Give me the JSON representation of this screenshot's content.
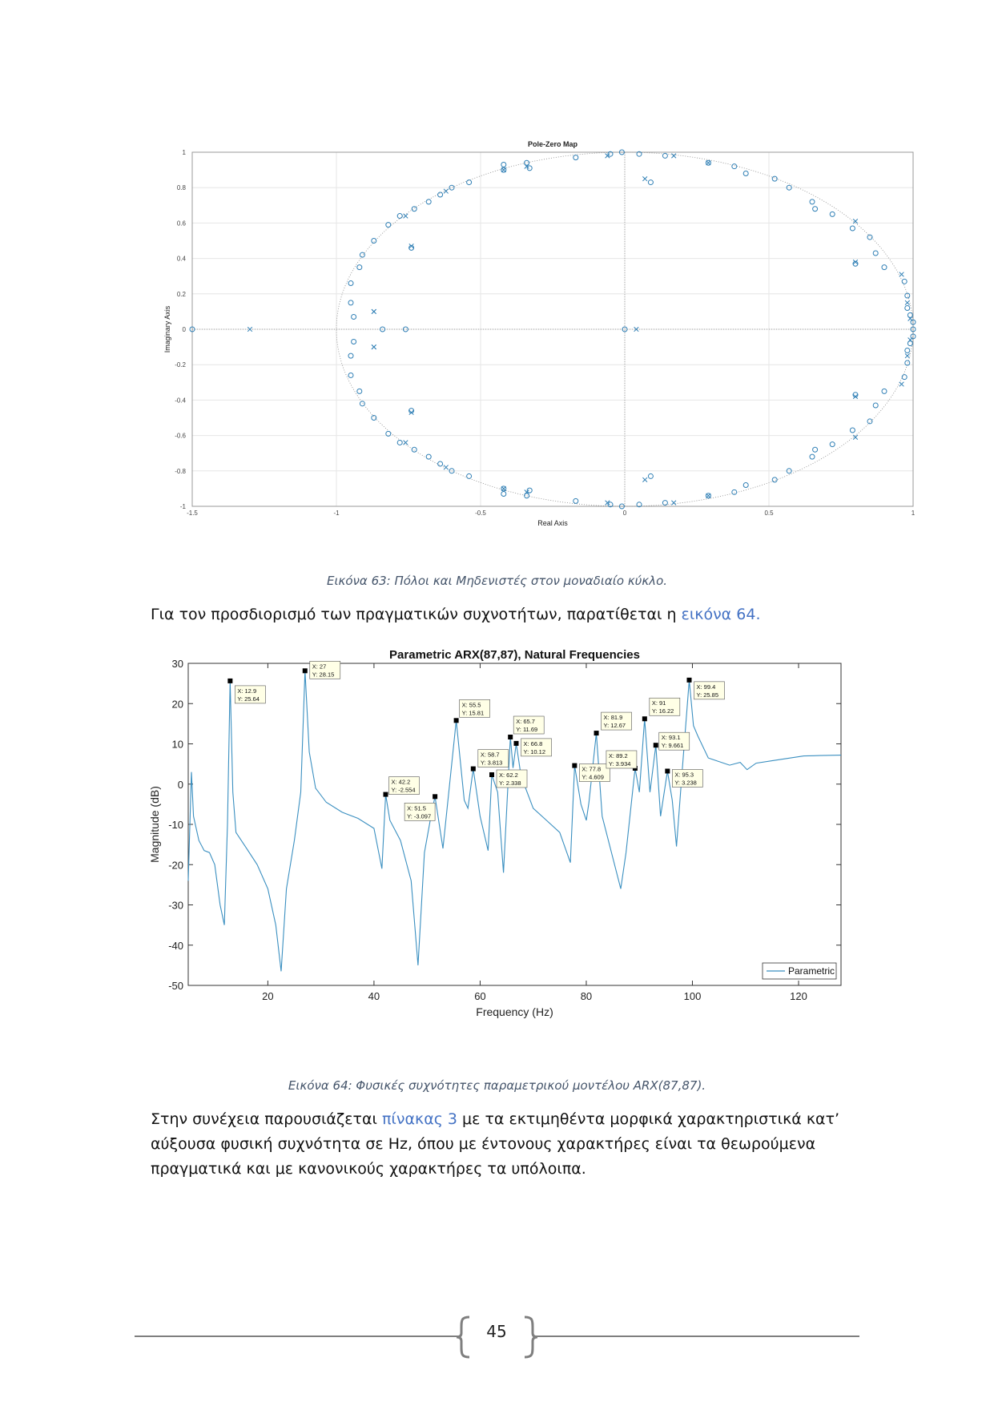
{
  "figure63": {
    "title": "Pole-Zero Map",
    "xlabel": "Real Axis",
    "ylabel": "Imaginary Axis",
    "xticks": [
      "-1.5",
      "-1",
      "-0.5",
      "0",
      "0.5",
      "1"
    ],
    "yticks": [
      "-1",
      "-0.8",
      "-0.6",
      "-0.4",
      "-0.2",
      "0",
      "0.2",
      "0.4",
      "0.6",
      "0.8",
      "1"
    ],
    "caption": "Εικόνα 63: Πόλοι και Μηδενιστές στον μοναδιαίο κύκλο.",
    "color": "#2f7fb5"
  },
  "intro": {
    "text": "Για τον προσδιορισμό των πραγματικών συχνοτήτων, παρατίθεται η ",
    "link": "εικόνα 64",
    "end": "."
  },
  "figure64": {
    "caption": "Εικόνα 64: Φυσικές συχνότητες παραμετρικού μοντέλου ARX(87,87)."
  },
  "chart_data": [
    {
      "type": "scatter",
      "title": "Pole-Zero Map",
      "xlabel": "Real Axis",
      "ylabel": "Imaginary Axis",
      "xlim": [
        -1.5,
        1
      ],
      "ylim": [
        -1,
        1
      ],
      "series": [
        {
          "marker": "o",
          "points": [
            [
              -1.5,
              0
            ],
            [
              -0.84,
              0
            ],
            [
              -0.76,
              0
            ],
            [
              0,
              0
            ],
            [
              -0.95,
              0.26
            ],
            [
              -0.95,
              0.15
            ],
            [
              -0.94,
              0.07
            ],
            [
              -0.92,
              0.35
            ],
            [
              -0.91,
              0.42
            ],
            [
              -0.87,
              0.5
            ],
            [
              -0.82,
              0.59
            ],
            [
              -0.78,
              0.64
            ],
            [
              -0.74,
              0.46
            ],
            [
              -0.73,
              0.68
            ],
            [
              -0.68,
              0.72
            ],
            [
              -0.64,
              0.76
            ],
            [
              -0.6,
              0.8
            ],
            [
              -0.54,
              0.83
            ],
            [
              -0.42,
              0.9
            ],
            [
              -0.42,
              0.93
            ],
            [
              -0.34,
              0.94
            ],
            [
              -0.33,
              0.91
            ],
            [
              -0.17,
              0.97
            ],
            [
              -0.05,
              0.99
            ],
            [
              -0.01,
              1
            ],
            [
              0.05,
              0.99
            ],
            [
              0.09,
              0.83
            ],
            [
              0.14,
              0.98
            ],
            [
              0.29,
              0.94
            ],
            [
              0.38,
              0.92
            ],
            [
              0.42,
              0.88
            ],
            [
              0.52,
              0.85
            ],
            [
              0.57,
              0.8
            ],
            [
              0.65,
              0.72
            ],
            [
              0.66,
              0.68
            ],
            [
              0.72,
              0.65
            ],
            [
              0.79,
              0.57
            ],
            [
              0.8,
              0.37
            ],
            [
              0.85,
              0.52
            ],
            [
              0.87,
              0.43
            ],
            [
              0.9,
              0.35
            ],
            [
              0.97,
              0.27
            ],
            [
              0.98,
              0.19
            ],
            [
              0.98,
              0.12
            ],
            [
              0.99,
              0.08
            ],
            [
              1,
              0.04
            ],
            [
              1,
              0
            ]
          ]
        },
        {
          "marker": "x",
          "points": [
            [
              -1.3,
              0
            ],
            [
              -0.87,
              0.1
            ],
            [
              -0.87,
              -0.1
            ],
            [
              0.04,
              0
            ],
            [
              -0.76,
              0.64
            ],
            [
              -0.74,
              0.47
            ],
            [
              -0.62,
              0.78
            ],
            [
              -0.42,
              0.9
            ],
            [
              -0.34,
              0.92
            ],
            [
              -0.06,
              0.98
            ],
            [
              0.07,
              0.85
            ],
            [
              0.17,
              0.98
            ],
            [
              0.29,
              0.94
            ],
            [
              0.8,
              0.61
            ],
            [
              0.8,
              0.38
            ],
            [
              0.96,
              0.31
            ],
            [
              0.98,
              0.15
            ],
            [
              0.99,
              0.06
            ]
          ]
        }
      ]
    },
    {
      "type": "line",
      "title": "Parametric ARX(87,87), Natural Frequencies",
      "xlabel": "Frequency (Hz)",
      "ylabel": "Magnitude (dB)",
      "xlim": [
        5,
        128
      ],
      "ylim": [
        -50,
        30
      ],
      "xticks": [
        20,
        40,
        60,
        80,
        100,
        120
      ],
      "yticks": [
        30,
        20,
        10,
        0,
        -10,
        -20,
        -30,
        -40,
        -50
      ],
      "legend": "bottom-right",
      "series": [
        {
          "name": "Parametric",
          "x": [
            5,
            5.6,
            6,
            7,
            8,
            9,
            10,
            11,
            11.8,
            12.4,
            12.9,
            13.4,
            14,
            16,
            18,
            20,
            21.5,
            22.5,
            23.5,
            25,
            26.2,
            27,
            27.8,
            29,
            31,
            34,
            37,
            40,
            41.5,
            42.2,
            43,
            45,
            47,
            48.3,
            49.5,
            50.8,
            51.5,
            53,
            55.5,
            57,
            57.7,
            58.7,
            60,
            61.5,
            62.2,
            63.3,
            64.4,
            65.7,
            66.2,
            66.8,
            67.7,
            70,
            72.5,
            75,
            77,
            77.8,
            79,
            80,
            80.5,
            81.9,
            83,
            86.5,
            87.5,
            89.2,
            90,
            91,
            92,
            93.1,
            94,
            95.3,
            96.2,
            97,
            98,
            99.4,
            100.2,
            101,
            103,
            107,
            109,
            110.3,
            112,
            115,
            118,
            121,
            124,
            128
          ],
          "y": [
            -24,
            3,
            -8,
            -14,
            -16.5,
            -17,
            -20,
            -30,
            -35,
            -10,
            25.64,
            -2,
            -12,
            -16,
            -20,
            -26,
            -35,
            -46.5,
            -26,
            -14,
            -2,
            28.15,
            8,
            -1,
            -4.5,
            -7,
            -8.5,
            -11,
            -21,
            -2.554,
            -9,
            -14,
            -24,
            -45,
            -17,
            -7.5,
            -3.097,
            -16,
            15.81,
            -4,
            -6,
            3.813,
            -8,
            -16.5,
            2.338,
            -2,
            -22,
            11.69,
            4,
            10.12,
            2,
            -6,
            -9,
            -12,
            -19.5,
            4.609,
            -5,
            -9,
            -4.5,
            12.67,
            -8,
            -26,
            -17,
            3.934,
            -2,
            16.22,
            -2,
            9.661,
            -8,
            3.238,
            -4,
            -15.5,
            2,
            25.85,
            14.5,
            12,
            6.5,
            4.7,
            5.4,
            3.6,
            5.2,
            5.8,
            6.4,
            7,
            7.1,
            7.2
          ]
        },
        {
          "name": "",
          "markers": [
            {
              "x": 12.9,
              "y": 25.64,
              "lx": "X: 12.9",
              "ly": "Y: 25.64"
            },
            {
              "x": 27,
              "y": 28.15,
              "lx": "X: 27",
              "ly": "Y: 28.15"
            },
            {
              "x": 42.2,
              "y": -2.554,
              "lx": "X: 42.2",
              "ly": "Y: -2.554"
            },
            {
              "x": 51.5,
              "y": -3.097,
              "lx": "X: 51.5",
              "ly": "Y: -3.097"
            },
            {
              "x": 55.5,
              "y": 15.81,
              "lx": "X: 55.5",
              "ly": "Y: 15.81"
            },
            {
              "x": 58.7,
              "y": 3.813,
              "lx": "X: 58.7",
              "ly": "Y: 3.813"
            },
            {
              "x": 62.2,
              "y": 2.338,
              "lx": "X: 62.2",
              "ly": "Y: 2.338"
            },
            {
              "x": 65.7,
              "y": 11.69,
              "lx": "X: 65.7",
              "ly": "Y: 11.69"
            },
            {
              "x": 66.8,
              "y": 10.12,
              "lx": "X: 66.8",
              "ly": "Y: 10.12"
            },
            {
              "x": 77.8,
              "y": 4.609,
              "lx": "X: 77.8",
              "ly": "Y: 4.609"
            },
            {
              "x": 81.9,
              "y": 12.67,
              "lx": "X: 81.9",
              "ly": "Y: 12.67"
            },
            {
              "x": 89.2,
              "y": 3.934,
              "lx": "X: 89.2",
              "ly": "Y: 3.934"
            },
            {
              "x": 91,
              "y": 16.22,
              "lx": "X: 91",
              "ly": "Y: 16.22"
            },
            {
              "x": 93.1,
              "y": 9.661,
              "lx": "X: 93.1",
              "ly": "Y: 9.661"
            },
            {
              "x": 95.3,
              "y": 3.238,
              "lx": "X: 95.3",
              "ly": "Y: 3.238"
            },
            {
              "x": 99.4,
              "y": 25.85,
              "lx": "X: 99.4",
              "ly": "Y: 25.85"
            }
          ]
        }
      ],
      "line_color": "#3a8fc0"
    }
  ],
  "body": {
    "line1_a": "Στην συνέχεια παρουσιάζεται ",
    "line1_link": "πίνακας 3",
    "line1_b": " με τα εκτιμηθέντα μορφικά χαρακτηριστικά κατ’",
    "line2": "αύξουσα φυσική συχνότητα σε Hz,  όπου με έντονους χαρακτήρες είναι τα θεωρούμενα",
    "line3": "πραγματικά και με κανονικούς χαρακτήρες τα υπόλοιπα."
  },
  "footer": {
    "page_number": "45"
  }
}
